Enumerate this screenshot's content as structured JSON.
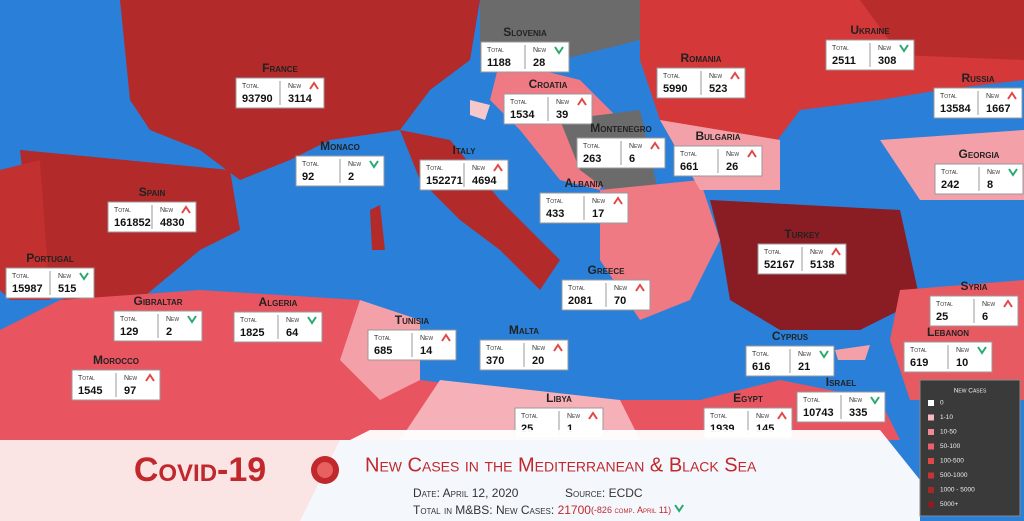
{
  "labels": {
    "total": "Total",
    "new": "New"
  },
  "countries": [
    {
      "name": "Slovenia",
      "total": "1188",
      "new": "28",
      "trend": "down"
    },
    {
      "name": "France",
      "total": "93790",
      "new": "3114",
      "trend": "up"
    },
    {
      "name": "Croatia",
      "total": "1534",
      "new": "39",
      "trend": "up"
    },
    {
      "name": "Romania",
      "total": "5990",
      "new": "523",
      "trend": "up"
    },
    {
      "name": "Ukraine",
      "total": "2511",
      "new": "308",
      "trend": "down"
    },
    {
      "name": "Russia",
      "total": "13584",
      "new": "1667",
      "trend": "up"
    },
    {
      "name": "Monaco",
      "total": "92",
      "new": "2",
      "trend": "down"
    },
    {
      "name": "Italy",
      "total": "152271",
      "new": "4694",
      "trend": "up"
    },
    {
      "name": "Montenegro",
      "total": "263",
      "new": "6",
      "trend": "up"
    },
    {
      "name": "Bulgaria",
      "total": "661",
      "new": "26",
      "trend": "up"
    },
    {
      "name": "Georgia",
      "total": "242",
      "new": "8",
      "trend": "down"
    },
    {
      "name": "Spain",
      "total": "161852",
      "new": "4830",
      "trend": "up"
    },
    {
      "name": "Albania",
      "total": "433",
      "new": "17",
      "trend": "up"
    },
    {
      "name": "Turkey",
      "total": "52167",
      "new": "5138",
      "trend": "up"
    },
    {
      "name": "Portugal",
      "total": "15987",
      "new": "515",
      "trend": "down"
    },
    {
      "name": "Greece",
      "total": "2081",
      "new": "70",
      "trend": "up"
    },
    {
      "name": "Gibraltar",
      "total": "129",
      "new": "2",
      "trend": "down"
    },
    {
      "name": "Algeria",
      "total": "1825",
      "new": "64",
      "trend": "down"
    },
    {
      "name": "Tunisia",
      "total": "685",
      "new": "14",
      "trend": "up"
    },
    {
      "name": "Malta",
      "total": "370",
      "new": "20",
      "trend": "up"
    },
    {
      "name": "Syria",
      "total": "25",
      "new": "6",
      "trend": "up"
    },
    {
      "name": "Cyprus",
      "total": "616",
      "new": "21",
      "trend": "down"
    },
    {
      "name": "Lebanon",
      "total": "619",
      "new": "10",
      "trend": "down"
    },
    {
      "name": "Morocco",
      "total": "1545",
      "new": "97",
      "trend": "up"
    },
    {
      "name": "Israel",
      "total": "10743",
      "new": "335",
      "trend": "down"
    },
    {
      "name": "Libya",
      "total": "25",
      "new": "1",
      "trend": "up"
    },
    {
      "name": "Egypt",
      "total": "1939",
      "new": "145",
      "trend": "up"
    }
  ],
  "legend": {
    "title": "New Cases",
    "items": [
      {
        "label": "0",
        "color": "#ffffff"
      },
      {
        "label": "1-10",
        "color": "#f7b8c0"
      },
      {
        "label": "10-50",
        "color": "#f08a94"
      },
      {
        "label": "50-100",
        "color": "#e8606a"
      },
      {
        "label": "100-500",
        "color": "#e04848"
      },
      {
        "label": "500-1000",
        "color": "#c83434"
      },
      {
        "label": "1000 - 5000",
        "color": "#a82828"
      },
      {
        "label": "5000+",
        "color": "#8a1c24"
      }
    ]
  },
  "banner": {
    "title": "Covid-19",
    "subtitle": "New Cases in the Mediterranean & Black Sea",
    "date": "Date: April 12, 2020",
    "source": "Source: ECDC",
    "total_label": "Total in M&BS: New Cases:",
    "total_value": "21700",
    "comparison": "(-826 comp. April 11)"
  }
}
